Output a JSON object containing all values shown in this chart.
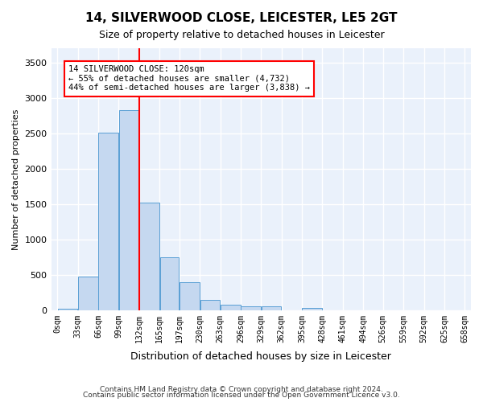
{
  "title1": "14, SILVERWOOD CLOSE, LEICESTER, LE5 2GT",
  "title2": "Size of property relative to detached houses in Leicester",
  "xlabel": "Distribution of detached houses by size in Leicester",
  "ylabel": "Number of detached properties",
  "bin_edges": [
    0,
    33,
    66,
    99,
    132,
    165,
    197,
    230,
    263,
    296,
    329,
    362,
    395,
    428,
    461,
    494,
    526,
    559,
    592,
    625,
    658
  ],
  "bin_labels": [
    "0sqm",
    "33sqm",
    "66sqm",
    "99sqm",
    "132sqm",
    "165sqm",
    "197sqm",
    "230sqm",
    "263sqm",
    "296sqm",
    "329sqm",
    "362sqm",
    "395sqm",
    "428sqm",
    "461sqm",
    "494sqm",
    "526sqm",
    "559sqm",
    "592sqm",
    "625sqm",
    "658sqm"
  ],
  "bar_values": [
    25,
    480,
    2510,
    2820,
    1515,
    750,
    390,
    145,
    75,
    55,
    55,
    0,
    30,
    0,
    0,
    0,
    0,
    0,
    0,
    0
  ],
  "bar_color": "#c5d8f0",
  "bar_edge_color": "#5a9fd4",
  "ylim": [
    0,
    3700
  ],
  "yticks": [
    0,
    500,
    1000,
    1500,
    2000,
    2500,
    3000,
    3500
  ],
  "annotation_text": "14 SILVERWOOD CLOSE: 120sqm\n← 55% of detached houses are smaller (4,732)\n44% of semi-detached houses are larger (3,838) →",
  "annotation_box_color": "white",
  "annotation_box_edge_color": "red",
  "vline_color": "red",
  "vline_pos": 132,
  "footer1": "Contains HM Land Registry data © Crown copyright and database right 2024.",
  "footer2": "Contains public sector information licensed under the Open Government Licence v3.0.",
  "background_color": "#eaf1fb",
  "grid_color": "white"
}
